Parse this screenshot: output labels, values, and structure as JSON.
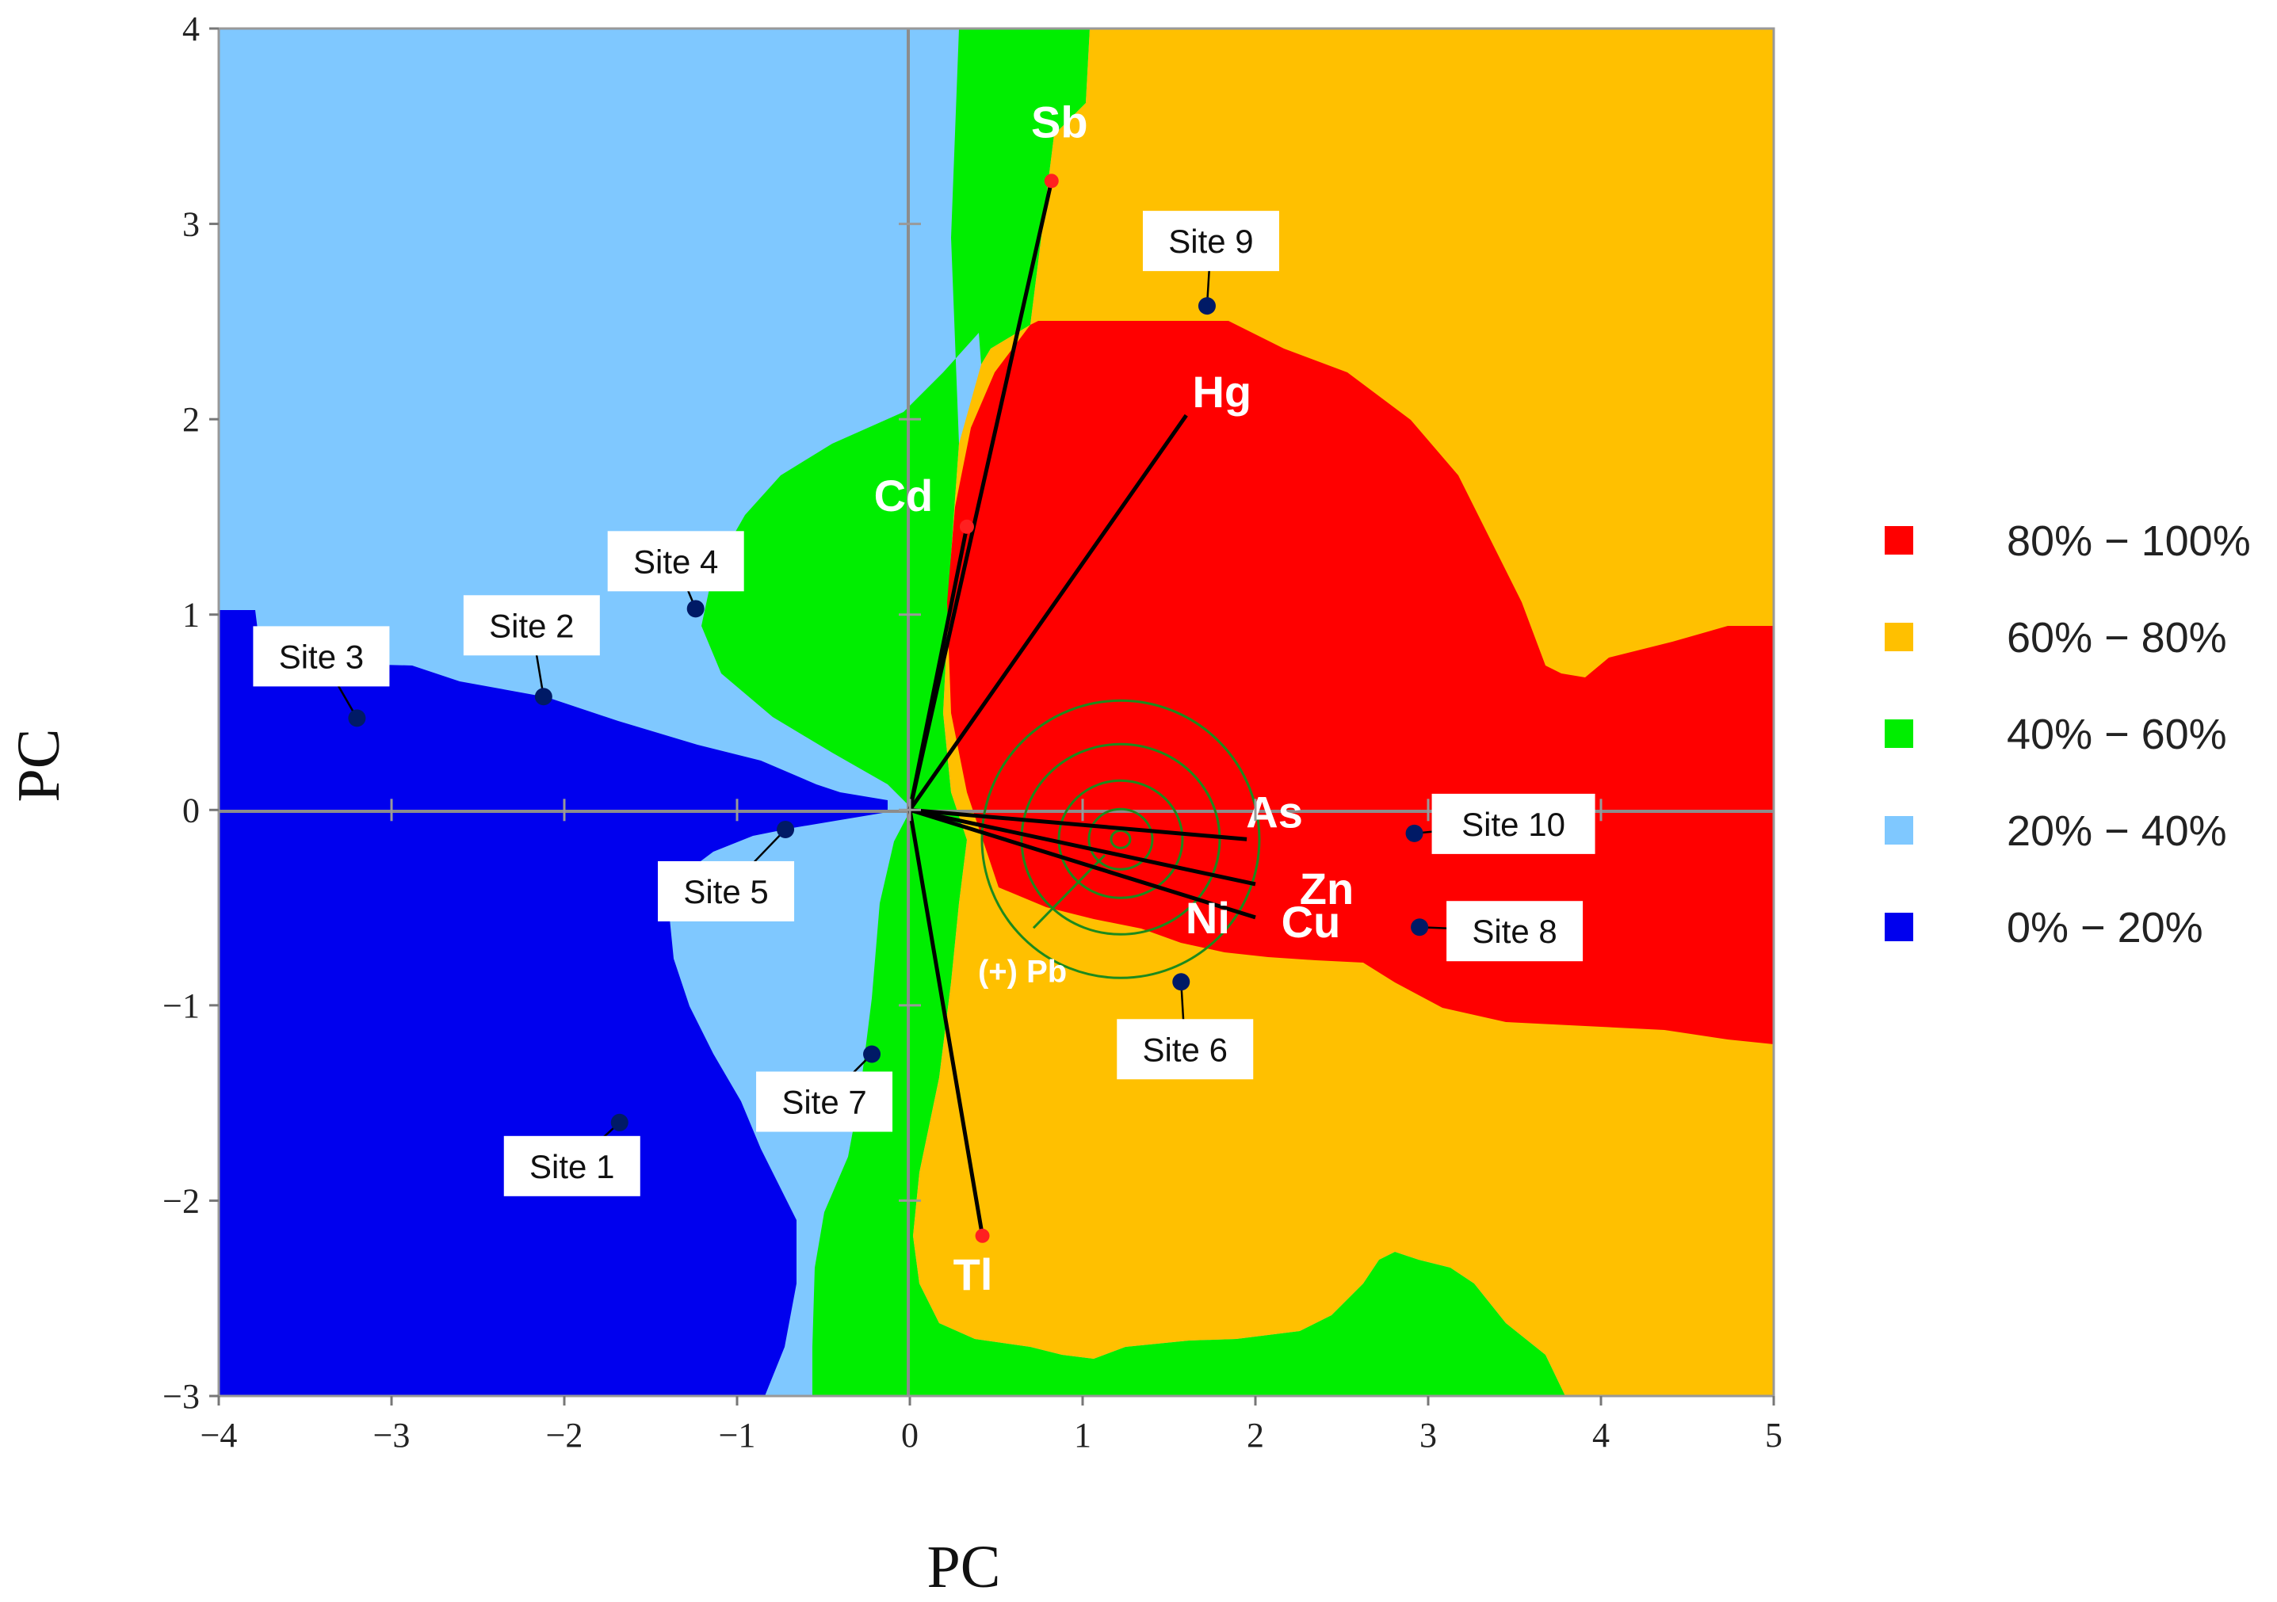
{
  "chart_data": {
    "type": "scatter",
    "xlabel": "PC",
    "ylabel": "PC",
    "xlim": [
      -4,
      5
    ],
    "ylim": [
      -3,
      4
    ],
    "x_ticks": [
      "−4",
      "−3",
      "−2",
      "−1",
      "0",
      "1",
      "2",
      "3",
      "4",
      "5"
    ],
    "y_ticks": [
      "−3",
      "−2",
      "−1",
      "0",
      "1",
      "2",
      "3",
      "4"
    ],
    "grid": false,
    "legend_position": "right",
    "legend": [
      {
        "label": "80% − 100%",
        "color": "#ff0000"
      },
      {
        "label": "60% − 80%",
        "color": "#ffc000"
      },
      {
        "label": "40% − 60%",
        "color": "#00ee00"
      },
      {
        "label": "20% − 40%",
        "color": "#7fc8ff"
      },
      {
        "label": "0% − 20%",
        "color": "#0000ee"
      }
    ],
    "loadings": [
      {
        "name": "Sb",
        "x": 0.82,
        "y": 3.22
      },
      {
        "name": "Hg",
        "x": 1.6,
        "y": 2.02
      },
      {
        "name": "Cd",
        "x": 0.33,
        "y": 1.45
      },
      {
        "name": "As",
        "x": 1.95,
        "y": -0.15
      },
      {
        "name": "Zn",
        "x": 2.0,
        "y": -0.38
      },
      {
        "name": "Cu",
        "x": 2.0,
        "y": -0.55
      },
      {
        "name": "Ni",
        "x": 1.55,
        "y": -0.72
      },
      {
        "name": "Tl",
        "x": 0.42,
        "y": -2.18
      }
    ],
    "sites": [
      {
        "name": "Site 1",
        "x": -1.68,
        "y": -1.6
      },
      {
        "name": "Site 2",
        "x": -2.12,
        "y": 0.58
      },
      {
        "name": "Site 3",
        "x": -3.2,
        "y": 0.47
      },
      {
        "name": "Site 4",
        "x": -1.24,
        "y": 1.03
      },
      {
        "name": "Site 5",
        "x": -0.72,
        "y": -0.1
      },
      {
        "name": "Site 6",
        "x": 1.57,
        "y": -0.88
      },
      {
        "name": "Site 7",
        "x": -0.22,
        "y": -1.25
      },
      {
        "name": "Site 8",
        "x": 2.95,
        "y": -0.6
      },
      {
        "name": "Site 9",
        "x": 1.72,
        "y": 2.58
      },
      {
        "name": "Site 10",
        "x": 2.92,
        "y": -0.12
      }
    ],
    "contour_center": {
      "x": 1.22,
      "y": -0.15,
      "label": "(+) Pb"
    }
  }
}
